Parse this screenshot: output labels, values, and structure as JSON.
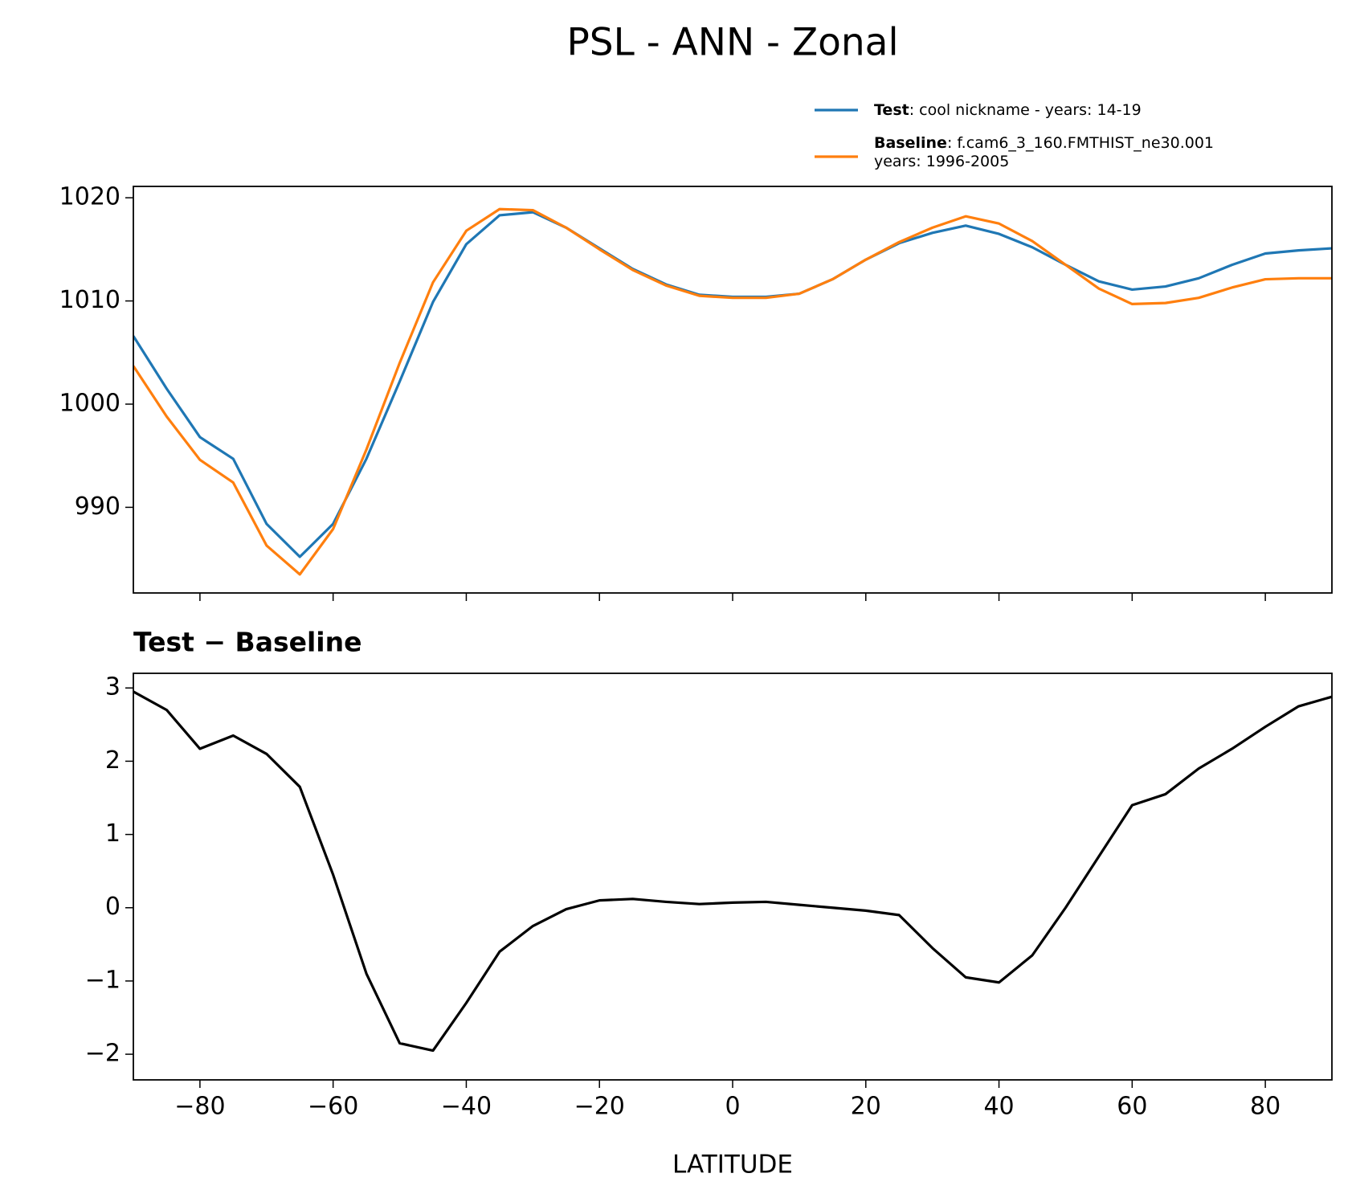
{
  "title": "PSL - ANN - Zonal",
  "chart_data": [
    {
      "type": "line",
      "x": [
        -90,
        -85,
        -80,
        -75,
        -70,
        -65,
        -60,
        -55,
        -50,
        -45,
        -40,
        -35,
        -30,
        -25,
        -20,
        -15,
        -10,
        -5,
        0,
        5,
        10,
        15,
        20,
        25,
        30,
        35,
        40,
        45,
        50,
        55,
        60,
        65,
        70,
        75,
        80,
        85,
        90
      ],
      "series": [
        {
          "name": "Test",
          "label_lines": [
            ": cool nickname - years: 14-19"
          ],
          "color": "#1f77b4",
          "values": [
            1006.6,
            1001.5,
            996.8,
            994.7,
            988.4,
            985.2,
            988.4,
            994.7,
            1002.2,
            1009.9,
            1015.5,
            1018.3,
            1018.6,
            1017.1,
            1015.1,
            1013.1,
            1011.6,
            1010.6,
            1010.4,
            1010.4,
            1010.7,
            1012.1,
            1014.0,
            1015.6,
            1016.6,
            1017.3,
            1016.5,
            1015.2,
            1013.5,
            1011.9,
            1011.1,
            1011.4,
            1012.2,
            1013.5,
            1014.6,
            1014.9,
            1015.1
          ]
        },
        {
          "name": "Baseline",
          "label_lines": [
            ": f.cam6_3_160.FMTHIST_ne30.001",
            "years: 1996-2005"
          ],
          "color": "#ff7f0e",
          "values": [
            1003.7,
            998.8,
            994.6,
            992.4,
            986.3,
            983.5,
            987.9,
            995.6,
            1004.0,
            1011.8,
            1016.8,
            1018.9,
            1018.8,
            1017.1,
            1015.0,
            1013.0,
            1011.5,
            1010.5,
            1010.3,
            1010.3,
            1010.7,
            1012.1,
            1014.0,
            1015.7,
            1017.1,
            1018.2,
            1017.5,
            1015.8,
            1013.5,
            1011.2,
            1009.7,
            1009.8,
            1010.3,
            1011.3,
            1012.1,
            1012.2,
            1012.2
          ]
        }
      ],
      "xlim": [
        -90,
        90
      ],
      "xticks": [
        -80,
        -60,
        -40,
        -20,
        0,
        20,
        40,
        60,
        80
      ],
      "show_xtick_labels": false,
      "ylim": [
        981.7,
        1021.1
      ],
      "yticks": [
        990,
        1000,
        1010,
        1020
      ]
    },
    {
      "type": "line",
      "title": "Test − Baseline",
      "xlabel": "LATITUDE",
      "x": [
        -90,
        -85,
        -80,
        -75,
        -70,
        -65,
        -60,
        -55,
        -50,
        -45,
        -40,
        -35,
        -30,
        -25,
        -20,
        -15,
        -10,
        -5,
        0,
        5,
        10,
        15,
        20,
        25,
        30,
        35,
        40,
        45,
        50,
        55,
        60,
        65,
        70,
        75,
        80,
        85,
        90
      ],
      "series": [
        {
          "color": "#000000",
          "values": [
            2.95,
            2.7,
            2.17,
            2.35,
            2.1,
            1.65,
            0.45,
            -0.9,
            -1.85,
            -1.95,
            -1.3,
            -0.6,
            -0.25,
            -0.02,
            0.1,
            0.12,
            0.08,
            0.05,
            0.07,
            0.08,
            0.04,
            0.0,
            -0.04,
            -0.1,
            -0.55,
            -0.95,
            -1.02,
            -0.65,
            0.0,
            0.7,
            1.4,
            1.55,
            1.9,
            2.17,
            2.47,
            2.75,
            2.88
          ]
        }
      ],
      "xlim": [
        -90,
        90
      ],
      "xticks": [
        {
          "value": -80,
          "label": "−80"
        },
        {
          "value": -60,
          "label": "−60"
        },
        {
          "value": -40,
          "label": "−40"
        },
        {
          "value": -20,
          "label": "−20"
        },
        0,
        20,
        40,
        60,
        80
      ],
      "show_xtick_labels": true,
      "ylim": [
        -2.35,
        3.2
      ],
      "yticks": [
        {
          "value": -2,
          "label": "−2"
        },
        {
          "value": -1,
          "label": "−1"
        },
        0,
        1,
        2,
        3
      ]
    }
  ]
}
